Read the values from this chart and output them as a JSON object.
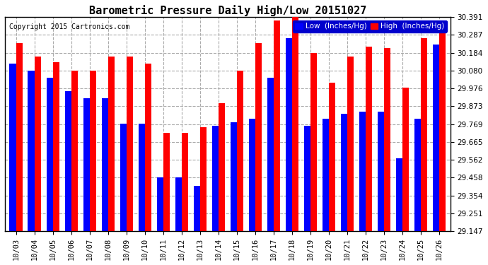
{
  "title": "Barometric Pressure Daily High/Low 20151027",
  "copyright": "Copyright 2015 Cartronics.com",
  "legend_low": "Low  (Inches/Hg)",
  "legend_high": "High  (Inches/Hg)",
  "dates": [
    "10/03",
    "10/04",
    "10/05",
    "10/06",
    "10/07",
    "10/08",
    "10/09",
    "10/10",
    "10/11",
    "10/12",
    "10/13",
    "10/14",
    "10/15",
    "10/16",
    "10/17",
    "10/18",
    "10/19",
    "10/20",
    "10/21",
    "10/22",
    "10/23",
    "10/24",
    "10/25",
    "10/26"
  ],
  "high": [
    30.24,
    30.16,
    30.13,
    30.08,
    30.08,
    30.16,
    30.16,
    30.12,
    29.72,
    29.72,
    29.75,
    29.89,
    30.08,
    30.24,
    30.37,
    30.391,
    30.18,
    30.01,
    30.16,
    30.22,
    30.21,
    29.98,
    30.27,
    30.32
  ],
  "low": [
    30.12,
    30.08,
    30.04,
    29.96,
    29.92,
    29.92,
    29.77,
    29.77,
    29.46,
    29.46,
    29.41,
    29.76,
    29.78,
    29.8,
    30.04,
    30.27,
    29.76,
    29.8,
    29.83,
    29.84,
    29.84,
    29.57,
    29.8,
    30.23
  ],
  "ymin": 29.147,
  "ymax": 30.391,
  "yticks": [
    29.147,
    29.251,
    29.354,
    29.458,
    29.562,
    29.665,
    29.769,
    29.873,
    29.976,
    30.08,
    30.184,
    30.287,
    30.391
  ],
  "bar_color_low": "#0000ff",
  "bar_color_high": "#ff0000",
  "bg_color": "#ffffff",
  "plot_bg_color": "#ffffff",
  "grid_color": "#aaaaaa",
  "title_fontsize": 11,
  "copyright_fontsize": 7,
  "tick_fontsize": 7.5,
  "legend_fontsize": 7.5
}
